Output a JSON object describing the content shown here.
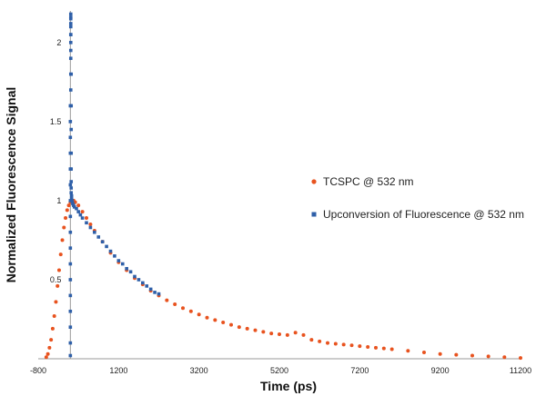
{
  "chart_data": {
    "type": "scatter",
    "xlabel": "Time (ps)",
    "ylabel": "Normalized Fluorescence Signal",
    "xlim": [
      -800,
      11200
    ],
    "ylim": [
      0,
      2.2
    ],
    "x_ticks": [
      -800,
      1200,
      3200,
      5200,
      7200,
      9200,
      11200
    ],
    "x_tick_labels": [
      "-800",
      "1200",
      "3200",
      "5200",
      "7200",
      "9200",
      "11200"
    ],
    "y_ticks": [
      0.5,
      1,
      1.5,
      2
    ],
    "y_tick_labels": [
      "0.5",
      "1",
      "1.5",
      "2"
    ],
    "grid": false,
    "legend_position": "right",
    "series": [
      {
        "name": "TCSPC @ 532 nm",
        "color": "#e8531f",
        "marker": "diamond",
        "x": [
          -600,
          -560,
          -520,
          -480,
          -440,
          -400,
          -360,
          -320,
          -280,
          -240,
          -200,
          -160,
          -120,
          -80,
          -40,
          0,
          40,
          80,
          120,
          200,
          300,
          400,
          500,
          600,
          800,
          1000,
          1200,
          1400,
          1600,
          1800,
          2000,
          2200,
          2400,
          2600,
          2800,
          3000,
          3200,
          3400,
          3600,
          3800,
          4000,
          4200,
          4400,
          4600,
          4800,
          5000,
          5200,
          5400,
          5600,
          5800,
          6000,
          6200,
          6400,
          6600,
          6800,
          7000,
          7200,
          7400,
          7600,
          7800,
          8000,
          8400,
          8800,
          9200,
          9600,
          10000,
          10400,
          10800,
          11200
        ],
        "y": [
          0.01,
          0.03,
          0.07,
          0.12,
          0.19,
          0.27,
          0.36,
          0.46,
          0.56,
          0.66,
          0.75,
          0.83,
          0.89,
          0.94,
          0.97,
          0.99,
          1.0,
          1.0,
          0.99,
          0.97,
          0.93,
          0.89,
          0.85,
          0.81,
          0.74,
          0.67,
          0.61,
          0.56,
          0.51,
          0.47,
          0.43,
          0.4,
          0.37,
          0.345,
          0.32,
          0.3,
          0.28,
          0.26,
          0.245,
          0.23,
          0.215,
          0.2,
          0.19,
          0.18,
          0.17,
          0.16,
          0.155,
          0.15,
          0.165,
          0.15,
          0.12,
          0.11,
          0.1,
          0.095,
          0.09,
          0.085,
          0.08,
          0.075,
          0.07,
          0.065,
          0.06,
          0.05,
          0.04,
          0.03,
          0.025,
          0.02,
          0.015,
          0.01,
          0.005
        ]
      },
      {
        "name": "Upconversion of Fluorescence @ 532 nm",
        "color": "#2e5fa8",
        "marker": "square",
        "x": [
          0,
          0,
          0,
          0,
          0,
          0,
          0,
          0,
          0,
          0,
          0,
          0,
          0,
          0,
          0,
          0,
          0,
          10,
          10,
          10,
          10,
          10,
          10,
          10,
          10,
          10,
          10,
          10,
          10,
          20,
          20,
          20,
          20,
          20,
          20,
          20,
          20,
          30,
          30,
          40,
          50,
          60,
          80,
          100,
          150,
          200,
          250,
          300,
          400,
          500,
          600,
          700,
          800,
          900,
          1000,
          1100,
          1200,
          1300,
          1400,
          1500,
          1600,
          1700,
          1800,
          1900,
          2000,
          2100,
          2200
        ],
        "y": [
          0.02,
          0.1,
          0.2,
          0.3,
          0.4,
          0.5,
          0.6,
          0.7,
          0.8,
          0.9,
          1.0,
          1.1,
          1.2,
          1.3,
          1.4,
          1.5,
          1.6,
          1.7,
          1.8,
          1.9,
          2.0,
          2.05,
          2.1,
          2.15,
          2.18,
          2.16,
          2.12,
          2.05,
          1.95,
          1.8,
          1.6,
          1.45,
          1.3,
          1.2,
          1.12,
          1.08,
          1.05,
          1.03,
          1.01,
          1.0,
          0.99,
          0.98,
          0.97,
          0.96,
          0.95,
          0.93,
          0.91,
          0.89,
          0.86,
          0.83,
          0.8,
          0.77,
          0.74,
          0.71,
          0.68,
          0.65,
          0.62,
          0.6,
          0.57,
          0.55,
          0.52,
          0.5,
          0.48,
          0.46,
          0.44,
          0.42,
          0.41
        ]
      }
    ]
  }
}
